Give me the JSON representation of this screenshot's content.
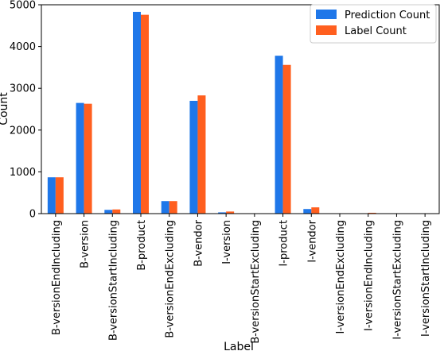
{
  "chart_data": {
    "type": "bar",
    "title": "",
    "xlabel": "Label",
    "ylabel": "Count",
    "ylim": [
      0,
      5000
    ],
    "yticks": [
      0,
      1000,
      2000,
      3000,
      4000,
      5000
    ],
    "grid": false,
    "legend_position": "top-right",
    "categories": [
      "B-versionEndIncluding",
      "B-version",
      "B-versionStartIncluding",
      "B-product",
      "B-versionEndExcluding",
      "B-vendor",
      "I-version",
      "B-versionStartExcluding",
      "I-product",
      "I-vendor",
      "I-versionEndExcluding",
      "I-versionEndIncluding",
      "I-versionStartExcluding",
      "I-versionStartIncluding"
    ],
    "series": [
      {
        "name": "Prediction Count",
        "color": "#1f77e9",
        "values": [
          870,
          2650,
          90,
          4830,
          300,
          2700,
          30,
          5,
          3780,
          110,
          2,
          5,
          2,
          2
        ]
      },
      {
        "name": "Label Count",
        "color": "#ff5f1f",
        "values": [
          870,
          2630,
          100,
          4760,
          300,
          2830,
          50,
          5,
          3560,
          150,
          2,
          20,
          2,
          2
        ]
      }
    ]
  }
}
